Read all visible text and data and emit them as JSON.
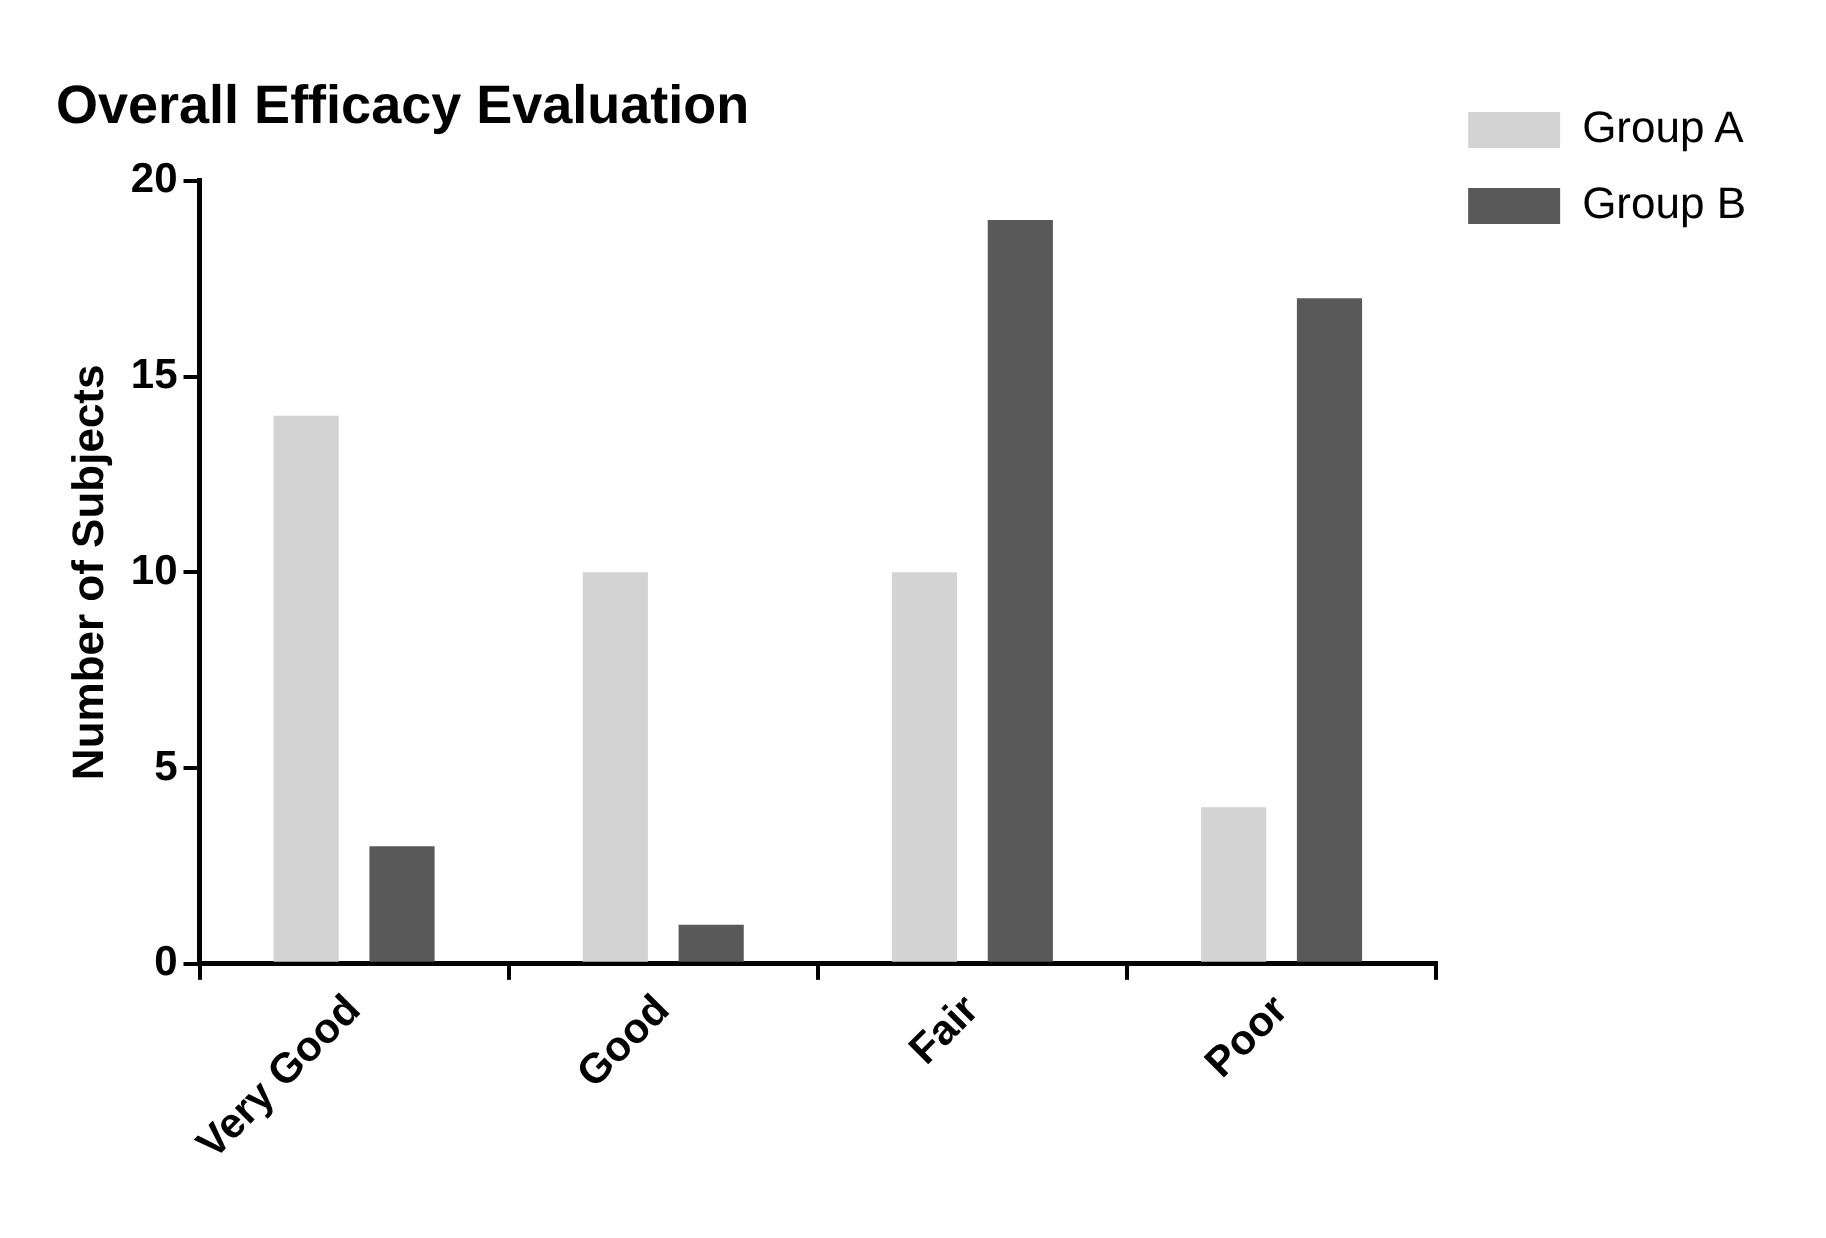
{
  "chart_data": {
    "type": "bar",
    "title": "Overall Efficacy Evaluation",
    "ylabel": "Number of Subjects",
    "categories": [
      "Very Good",
      "Good",
      "Fair",
      "Poor"
    ],
    "series": [
      {
        "name": "Group A",
        "color": "#d3d3d3",
        "values": [
          14,
          10,
          10,
          4
        ]
      },
      {
        "name": "Group B",
        "color": "#595959",
        "values": [
          3,
          1,
          19,
          17
        ]
      }
    ],
    "ylim": [
      0,
      20
    ],
    "yticks": [
      0,
      5,
      10,
      15,
      20
    ],
    "grid": false,
    "legend": "top right"
  }
}
